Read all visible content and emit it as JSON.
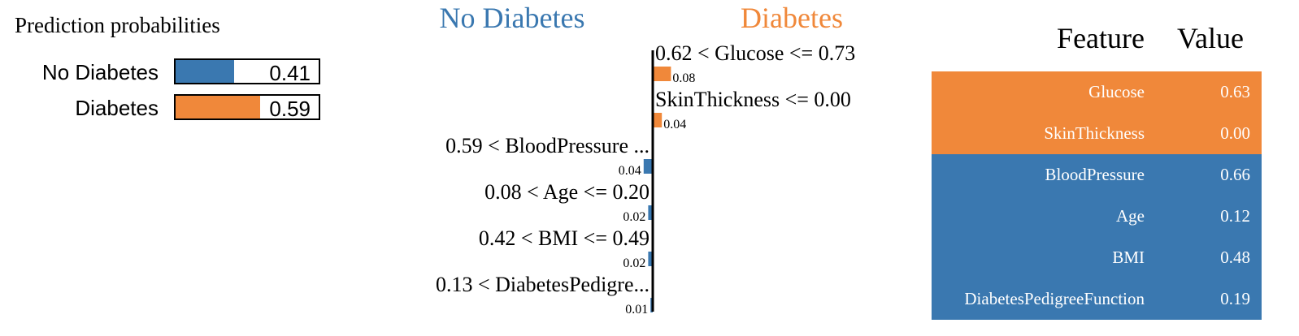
{
  "colors": {
    "no_diabetes": "#3a78b0",
    "diabetes": "#f0883a"
  },
  "prediction_panel": {
    "title": "Prediction probabilities",
    "items": [
      {
        "label": "No Diabetes",
        "value_text": "0.41",
        "value": 0.41,
        "color": "#3a78b0"
      },
      {
        "label": "Diabetes",
        "value_text": "0.59",
        "value": 0.59,
        "color": "#f0883a"
      }
    ]
  },
  "chart_data": {
    "type": "bar",
    "orientation": "horizontal",
    "class_negative": "No Diabetes",
    "class_positive": "Diabetes",
    "bars": [
      {
        "label": "0.62 < Glucose <= 0.73",
        "value": 0.08,
        "value_text": "0.08",
        "side": "positive"
      },
      {
        "label": "SkinThickness <= 0.00",
        "value": 0.04,
        "value_text": "0.04",
        "side": "positive"
      },
      {
        "label": "0.59 < BloodPressure ...",
        "value": 0.04,
        "value_text": "0.04",
        "side": "negative"
      },
      {
        "label": "0.08 < Age <= 0.20",
        "value": 0.02,
        "value_text": "0.02",
        "side": "negative"
      },
      {
        "label": "0.42 < BMI <= 0.49",
        "value": 0.02,
        "value_text": "0.02",
        "side": "negative"
      },
      {
        "label": "0.13 < DiabetesPedigre...",
        "value": 0.01,
        "value_text": "0.01",
        "side": "negative"
      }
    ]
  },
  "feature_table": {
    "headers": {
      "feature": "Feature",
      "value": "Value"
    },
    "rows": [
      {
        "feature": "Glucose",
        "value": "0.63",
        "side": "positive"
      },
      {
        "feature": "SkinThickness",
        "value": "0.00",
        "side": "positive"
      },
      {
        "feature": "BloodPressure",
        "value": "0.66",
        "side": "negative"
      },
      {
        "feature": "Age",
        "value": "0.12",
        "side": "negative"
      },
      {
        "feature": "BMI",
        "value": "0.48",
        "side": "negative"
      },
      {
        "feature": "DiabetesPedigreeFunction",
        "value": "0.19",
        "side": "negative"
      }
    ]
  }
}
